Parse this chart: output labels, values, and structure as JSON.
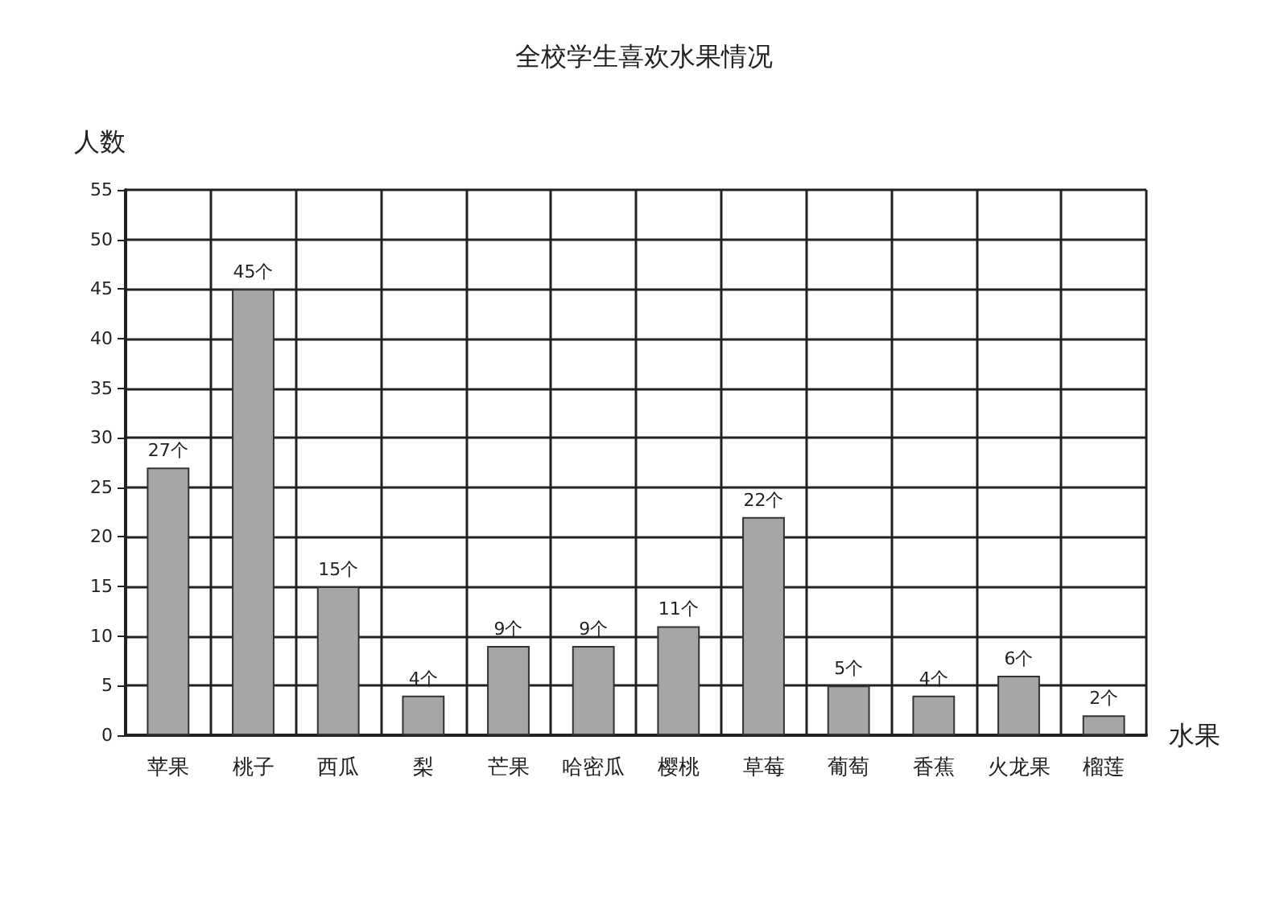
{
  "chart_data": {
    "type": "bar",
    "title": "全校学生喜欢水果情况",
    "ylabel": "人数",
    "xlabel": "水果",
    "categories": [
      "苹果",
      "桃子",
      "西瓜",
      "梨",
      "芒果",
      "哈密瓜",
      "樱桃",
      "草莓",
      "葡萄",
      "香蕉",
      "火龙果",
      "榴莲"
    ],
    "values": [
      27,
      45,
      15,
      4,
      9,
      9,
      11,
      22,
      5,
      4,
      6,
      2
    ],
    "value_labels": [
      "27个",
      "45个",
      "15个",
      "4个",
      "9个",
      "9个",
      "11个",
      "22个",
      "5个",
      "4个",
      "6个",
      "2个"
    ],
    "color": "#a6a6a6",
    "ylim": [
      0,
      55
    ],
    "yticks": [
      0,
      5,
      10,
      15,
      20,
      25,
      30,
      35,
      40,
      45,
      50,
      55
    ],
    "grid": true
  }
}
